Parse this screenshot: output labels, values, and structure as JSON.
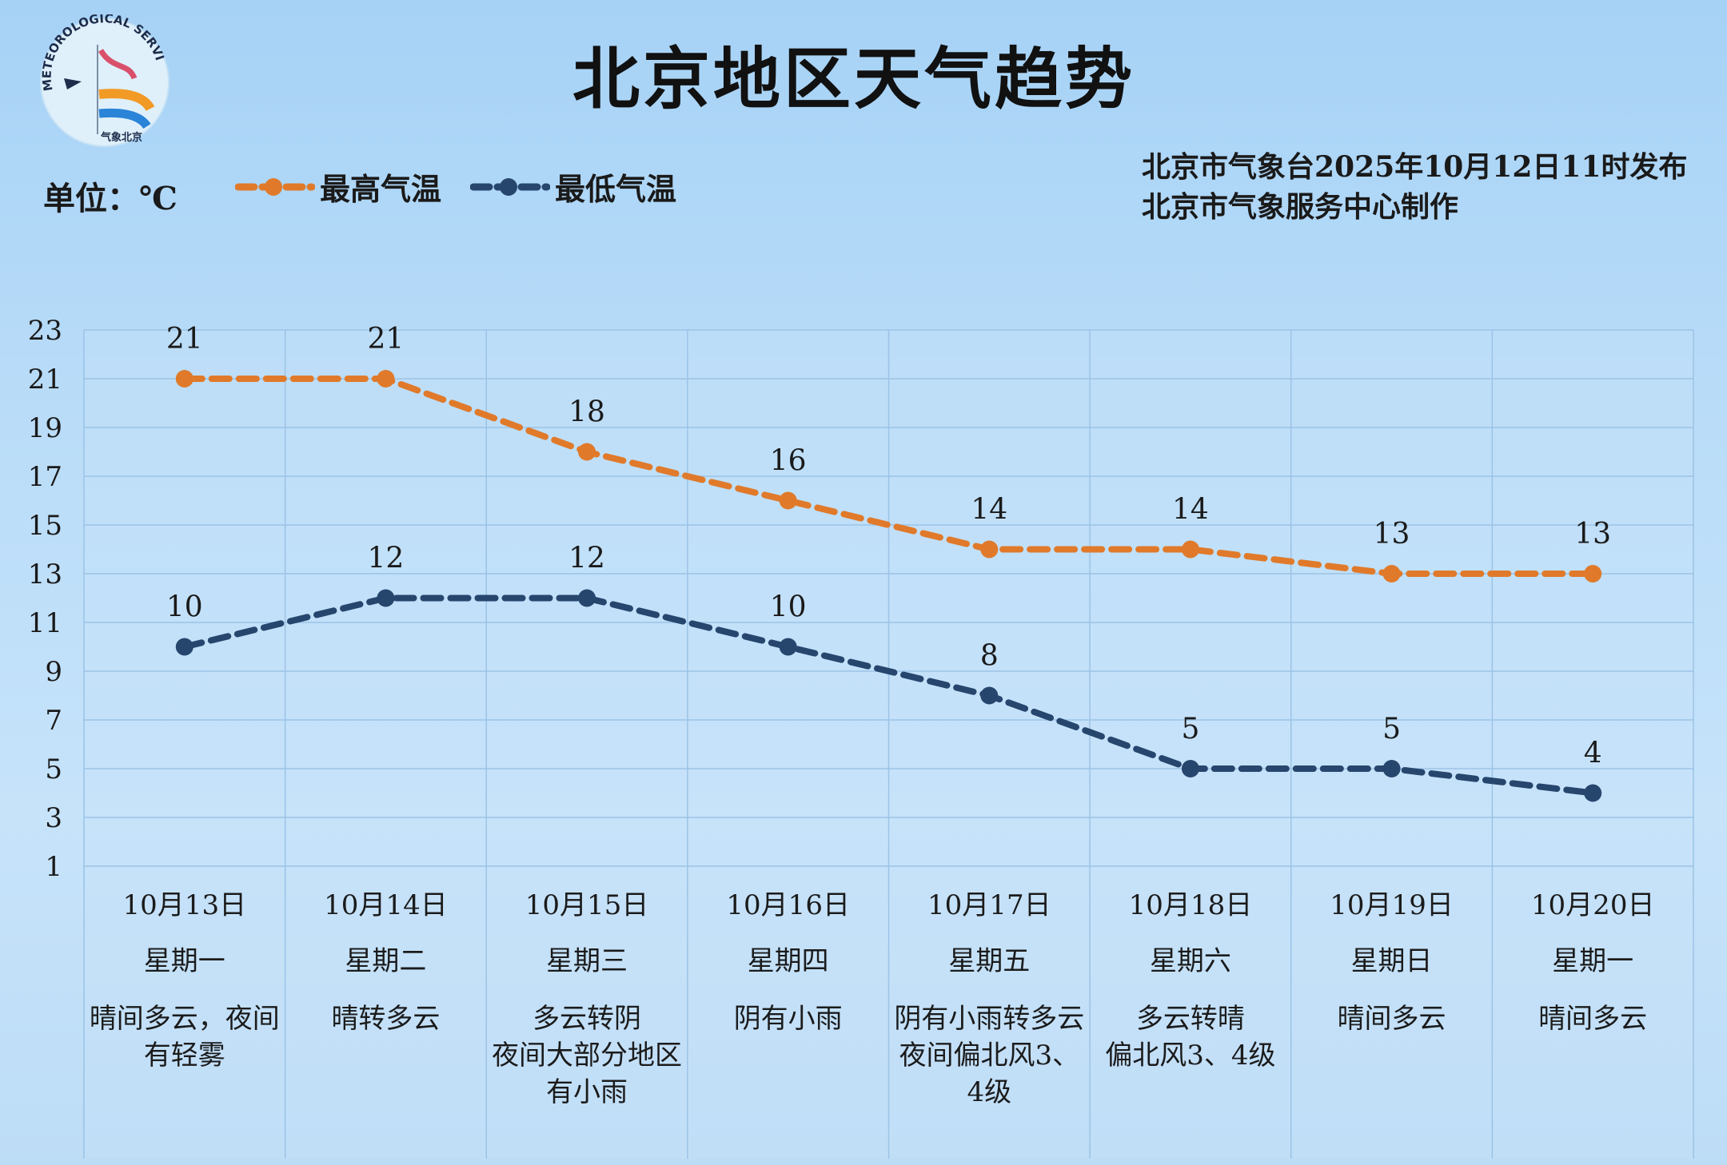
{
  "title": "北京地区天气趋势",
  "logo_text": "METEOROLOGICAL SERVICE · BEIJING 气象北京",
  "unit_label": "单位：℃",
  "issuer": {
    "line1": "北京市气象台2025年10月12日11时发布",
    "line2": "北京市气象服务中心制作"
  },
  "colors": {
    "high": "#e07a2a",
    "low": "#27466e",
    "grid": "#9cc3e6"
  },
  "chart_data": {
    "type": "line",
    "title": "北京地区天气趋势",
    "ylabel": "单位：℃",
    "ylim": [
      1,
      23
    ],
    "yticks": [
      23,
      21,
      19,
      17,
      15,
      13,
      11,
      9,
      7,
      5,
      3,
      1
    ],
    "grid": true,
    "legend": "top-left",
    "categories": [
      "10月13日",
      "10月14日",
      "10月15日",
      "10月16日",
      "10月17日",
      "10月18日",
      "10月19日",
      "10月20日"
    ],
    "weekdays": [
      "星期一",
      "星期二",
      "星期三",
      "星期四",
      "星期五",
      "星期六",
      "星期日",
      "星期一"
    ],
    "weather": [
      "晴间多云，夜间有轻雾",
      "晴转多云",
      "多云转阴\n夜间大部分地区有小雨",
      "阴有小雨",
      "阴有小雨转多云\n夜间偏北风3、4级",
      "多云转晴\n偏北风3、4级",
      "晴间多云",
      "晴间多云"
    ],
    "series": [
      {
        "name": "最高气温",
        "values": [
          21,
          21,
          18,
          16,
          14,
          14,
          13,
          13
        ]
      },
      {
        "name": "最低气温",
        "values": [
          10,
          12,
          12,
          10,
          8,
          5,
          5,
          4
        ]
      }
    ]
  }
}
